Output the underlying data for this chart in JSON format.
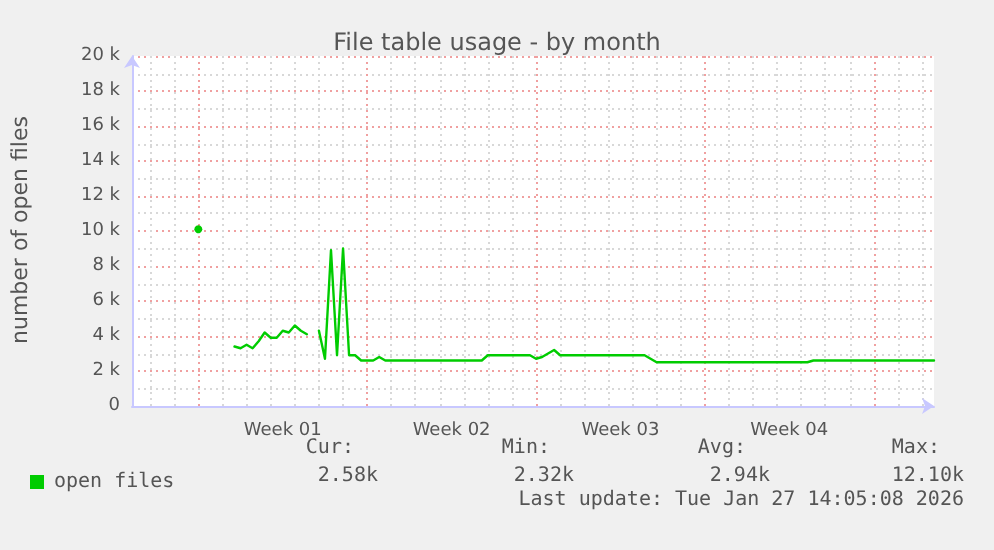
{
  "chart_data": {
    "type": "line",
    "title": "File table usage - by month",
    "ylabel": "number of open files",
    "categories": [
      null,
      null,
      null,
      null,
      null,
      null,
      null,
      null,
      null,
      null,
      null,
      null,
      null,
      null,
      null,
      null,
      null,
      null,
      null,
      null,
      null,
      null,
      null,
      null,
      null,
      "Week 01",
      null,
      null,
      null,
      null,
      null,
      null,
      null,
      null,
      null,
      null,
      null,
      null,
      null,
      null,
      null,
      null,
      null,
      null,
      null,
      null,
      null,
      null,
      null,
      null,
      null,
      null,
      null,
      "Week 02",
      null,
      null,
      null,
      null,
      null,
      null,
      null,
      null,
      null,
      null,
      null,
      null,
      null,
      null,
      null,
      null,
      null,
      null,
      null,
      null,
      null,
      null,
      null,
      null,
      null,
      null,
      null,
      "Week 03",
      null,
      null,
      null,
      null,
      null,
      null,
      null,
      null,
      null,
      null,
      null,
      null,
      null,
      null,
      null,
      null,
      null,
      null,
      null,
      null,
      null,
      null,
      null,
      null,
      null,
      null,
      null,
      "Week 04",
      null,
      null,
      null,
      null,
      null,
      null,
      null,
      null,
      null,
      null,
      null,
      null,
      null,
      null,
      null,
      null,
      null,
      null,
      null,
      null,
      null,
      null,
      null,
      null
    ],
    "series": [
      {
        "name": "open files",
        "color": "#00cc00",
        "values": [
          null,
          null,
          null,
          null,
          null,
          null,
          null,
          null,
          null,
          null,
          null,
          10100,
          null,
          null,
          null,
          null,
          null,
          3400,
          3300,
          3500,
          3300,
          3700,
          4200,
          3900,
          3900,
          4300,
          4200,
          4600,
          4300,
          4100,
          null,
          4300,
          2700,
          8900,
          2900,
          9000,
          2900,
          2900,
          2600,
          2600,
          2600,
          2800,
          2600,
          2600,
          2600,
          2600,
          2600,
          2600,
          2600,
          2600,
          2600,
          2600,
          2600,
          2600,
          2600,
          2600,
          2600,
          2600,
          2600,
          2900,
          2900,
          2900,
          2900,
          2900,
          2900,
          2900,
          2900,
          2700,
          2800,
          3000,
          3200,
          2900,
          2900,
          2900,
          2900,
          2900,
          2900,
          2900,
          2900,
          2900,
          2900,
          2900,
          2900,
          2900,
          2900,
          2900,
          2700,
          2500,
          2500,
          2500,
          2500,
          2500,
          2500,
          2500,
          2500,
          2500,
          2500,
          2500,
          2500,
          2500,
          2500,
          2500,
          2500,
          2500,
          2500,
          2500,
          2500,
          2500,
          2500,
          2500,
          2500,
          2500,
          2500,
          2600,
          2600,
          2600,
          2600,
          2600,
          2600,
          2600,
          2600,
          2600,
          2600,
          2600,
          2600,
          2600,
          2600,
          2600,
          2600,
          2600,
          2600,
          2600,
          2600,
          2600
        ]
      }
    ],
    "ylim": [
      0,
      20000
    ],
    "yticks": [
      0,
      {
        "value": 2000,
        "label": "2 k"
      },
      {
        "value": 4000,
        "label": "4 k"
      },
      {
        "value": 6000,
        "label": "6 k"
      },
      {
        "value": 8000,
        "label": "8 k"
      },
      {
        "value": 10000,
        "label": "10 k"
      },
      {
        "value": 12000,
        "label": "12 k"
      },
      {
        "value": 14000,
        "label": "14 k"
      },
      {
        "value": 16000,
        "label": "16 k"
      },
      {
        "value": 18000,
        "label": "18 k"
      },
      {
        "value": 20000,
        "label": "20 k"
      }
    ],
    "grid": true,
    "legend": "bottom left",
    "marker": "none",
    "line_style": "solid",
    "annotations": [
      "Cur:",
      "Min:",
      "Avg:",
      "Max:",
      "2.58k",
      "2.32k",
      "2.94k",
      "12.10k",
      "Last update: Tue Jan 27 14:05:08 2026"
    ]
  }
}
